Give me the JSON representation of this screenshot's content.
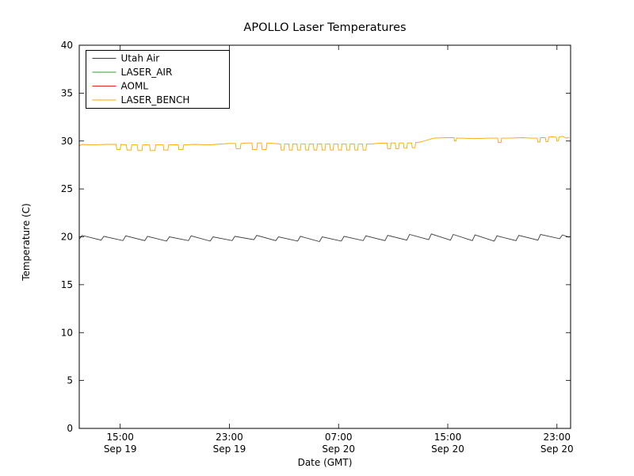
{
  "chart_data": {
    "type": "line",
    "title": "APOLLO Laser Temperatures",
    "xlabel": "Date (GMT)",
    "ylabel": "Temperature (C)",
    "ylim": [
      0,
      40
    ],
    "yticks": [
      0,
      5,
      10,
      15,
      20,
      25,
      30,
      35,
      40
    ],
    "x_axis_unit": "hours since Sep 19 12:00 GMT",
    "xlim_hours": [
      0,
      36
    ],
    "xticks": [
      {
        "hours": 3,
        "time": "15:00",
        "date": "Sep 19"
      },
      {
        "hours": 11,
        "time": "23:00",
        "date": "Sep 19"
      },
      {
        "hours": 19,
        "time": "07:00",
        "date": "Sep 20"
      },
      {
        "hours": 27,
        "time": "15:00",
        "date": "Sep 20"
      },
      {
        "hours": 35,
        "time": "23:00",
        "date": "Sep 20"
      }
    ],
    "grid": false,
    "legend_position": "upper left",
    "legend": [
      "Utah Air",
      "LASER_AIR",
      "AOML",
      "LASER_BENCH"
    ],
    "series": [
      {
        "name": "Utah Air",
        "color": "#3b3b3b",
        "points": [
          [
            0,
            19.75
          ],
          [
            0.2,
            20.15
          ],
          [
            1.6,
            19.65
          ],
          [
            1.8,
            20.05
          ],
          [
            3.2,
            19.6
          ],
          [
            3.4,
            20.1
          ],
          [
            4.8,
            19.6
          ],
          [
            5.0,
            20.05
          ],
          [
            6.4,
            19.55
          ],
          [
            6.6,
            20.0
          ],
          [
            8.0,
            19.6
          ],
          [
            8.2,
            20.1
          ],
          [
            9.6,
            19.55
          ],
          [
            9.8,
            20.0
          ],
          [
            11.2,
            19.6
          ],
          [
            11.4,
            20.05
          ],
          [
            12.8,
            19.7
          ],
          [
            13.0,
            20.15
          ],
          [
            14.4,
            19.6
          ],
          [
            14.6,
            20.0
          ],
          [
            16.0,
            19.55
          ],
          [
            16.2,
            20.05
          ],
          [
            17.6,
            19.5
          ],
          [
            17.8,
            20.0
          ],
          [
            19.2,
            19.55
          ],
          [
            19.4,
            20.05
          ],
          [
            20.8,
            19.6
          ],
          [
            21.0,
            20.1
          ],
          [
            22.4,
            19.6
          ],
          [
            22.6,
            20.15
          ],
          [
            24.0,
            19.65
          ],
          [
            24.2,
            20.25
          ],
          [
            25.6,
            19.7
          ],
          [
            25.8,
            20.3
          ],
          [
            27.2,
            19.65
          ],
          [
            27.4,
            20.25
          ],
          [
            28.8,
            19.6
          ],
          [
            29.0,
            20.2
          ],
          [
            30.4,
            19.55
          ],
          [
            30.6,
            20.1
          ],
          [
            32.0,
            19.6
          ],
          [
            32.2,
            20.15
          ],
          [
            33.6,
            19.65
          ],
          [
            33.8,
            20.25
          ],
          [
            35.2,
            19.8
          ],
          [
            35.4,
            20.2
          ],
          [
            35.9,
            19.95
          ]
        ]
      },
      {
        "name": "LASER_AIR",
        "color": "#2ca02c",
        "points": []
      },
      {
        "name": "AOML",
        "color": "#e32222",
        "points": []
      },
      {
        "name": "LASER_BENCH",
        "color": "#ffa500",
        "points": [
          [
            0,
            29.5
          ],
          [
            0.2,
            29.65
          ],
          [
            1.0,
            29.6
          ],
          [
            2.0,
            29.65
          ],
          [
            2.7,
            29.65
          ],
          [
            2.75,
            29.1
          ],
          [
            3.0,
            29.1
          ],
          [
            3.05,
            29.65
          ],
          [
            3.45,
            29.6
          ],
          [
            3.5,
            29.05
          ],
          [
            3.8,
            29.05
          ],
          [
            3.85,
            29.6
          ],
          [
            4.25,
            29.6
          ],
          [
            4.3,
            29.0
          ],
          [
            4.6,
            29.0
          ],
          [
            4.65,
            29.6
          ],
          [
            5.15,
            29.6
          ],
          [
            5.2,
            29.0
          ],
          [
            5.55,
            29.0
          ],
          [
            5.6,
            29.6
          ],
          [
            6.15,
            29.6
          ],
          [
            6.2,
            29.05
          ],
          [
            6.5,
            29.05
          ],
          [
            6.55,
            29.6
          ],
          [
            7.25,
            29.6
          ],
          [
            7.3,
            29.1
          ],
          [
            7.6,
            29.1
          ],
          [
            7.65,
            29.6
          ],
          [
            8.5,
            29.65
          ],
          [
            9.5,
            29.6
          ],
          [
            10.0,
            29.65
          ],
          [
            11.0,
            29.75
          ],
          [
            11.45,
            29.75
          ],
          [
            11.5,
            29.2
          ],
          [
            11.8,
            29.2
          ],
          [
            11.85,
            29.75
          ],
          [
            12.3,
            29.8
          ],
          [
            12.65,
            29.8
          ],
          [
            12.7,
            29.1
          ],
          [
            13.0,
            29.1
          ],
          [
            13.05,
            29.8
          ],
          [
            13.35,
            29.8
          ],
          [
            13.4,
            29.1
          ],
          [
            13.7,
            29.1
          ],
          [
            13.75,
            29.8
          ],
          [
            14.2,
            29.75
          ],
          [
            14.75,
            29.7
          ],
          [
            14.8,
            29.05
          ],
          [
            15.0,
            29.05
          ],
          [
            15.05,
            29.7
          ],
          [
            15.35,
            29.7
          ],
          [
            15.4,
            29.05
          ],
          [
            15.6,
            29.05
          ],
          [
            15.65,
            29.7
          ],
          [
            15.95,
            29.7
          ],
          [
            16.0,
            29.05
          ],
          [
            16.2,
            29.05
          ],
          [
            16.25,
            29.7
          ],
          [
            16.55,
            29.7
          ],
          [
            16.6,
            29.05
          ],
          [
            16.8,
            29.05
          ],
          [
            16.85,
            29.7
          ],
          [
            17.15,
            29.7
          ],
          [
            17.2,
            29.05
          ],
          [
            17.4,
            29.05
          ],
          [
            17.45,
            29.7
          ],
          [
            17.75,
            29.7
          ],
          [
            17.8,
            29.05
          ],
          [
            18.0,
            29.05
          ],
          [
            18.05,
            29.7
          ],
          [
            18.35,
            29.7
          ],
          [
            18.4,
            29.05
          ],
          [
            18.6,
            29.05
          ],
          [
            18.65,
            29.7
          ],
          [
            18.95,
            29.7
          ],
          [
            19.0,
            29.05
          ],
          [
            19.2,
            29.05
          ],
          [
            19.25,
            29.7
          ],
          [
            19.55,
            29.7
          ],
          [
            19.6,
            29.05
          ],
          [
            19.8,
            29.05
          ],
          [
            19.85,
            29.7
          ],
          [
            20.15,
            29.7
          ],
          [
            20.2,
            29.05
          ],
          [
            20.4,
            29.05
          ],
          [
            20.45,
            29.7
          ],
          [
            20.75,
            29.7
          ],
          [
            20.8,
            29.05
          ],
          [
            21.0,
            29.05
          ],
          [
            21.05,
            29.7
          ],
          [
            21.4,
            29.7
          ],
          [
            21.8,
            29.75
          ],
          [
            22.55,
            29.8
          ],
          [
            22.6,
            29.2
          ],
          [
            22.8,
            29.2
          ],
          [
            22.85,
            29.8
          ],
          [
            23.15,
            29.8
          ],
          [
            23.2,
            29.2
          ],
          [
            23.4,
            29.2
          ],
          [
            23.45,
            29.8
          ],
          [
            23.75,
            29.8
          ],
          [
            23.8,
            29.25
          ],
          [
            24.0,
            29.25
          ],
          [
            24.05,
            29.8
          ],
          [
            24.35,
            29.8
          ],
          [
            24.4,
            29.3
          ],
          [
            24.6,
            29.3
          ],
          [
            24.65,
            29.85
          ],
          [
            25.0,
            29.9
          ],
          [
            25.5,
            30.1
          ],
          [
            26.0,
            30.3
          ],
          [
            27.0,
            30.35
          ],
          [
            27.45,
            30.35
          ],
          [
            27.5,
            30.0
          ],
          [
            27.6,
            30.0
          ],
          [
            27.65,
            30.3
          ],
          [
            28.0,
            30.3
          ],
          [
            29.0,
            30.25
          ],
          [
            30.0,
            30.3
          ],
          [
            30.65,
            30.3
          ],
          [
            30.7,
            29.85
          ],
          [
            30.9,
            29.85
          ],
          [
            30.95,
            30.3
          ],
          [
            31.5,
            30.3
          ],
          [
            32.5,
            30.35
          ],
          [
            33.0,
            30.3
          ],
          [
            33.55,
            30.3
          ],
          [
            33.6,
            29.9
          ],
          [
            33.75,
            29.9
          ],
          [
            33.8,
            30.35
          ],
          [
            34.15,
            30.35
          ],
          [
            34.2,
            29.95
          ],
          [
            34.35,
            29.95
          ],
          [
            34.4,
            30.4
          ],
          [
            34.6,
            30.45
          ],
          [
            34.95,
            30.4
          ],
          [
            35.0,
            30.0
          ],
          [
            35.1,
            30.0
          ],
          [
            35.15,
            30.4
          ],
          [
            35.4,
            30.5
          ],
          [
            35.7,
            30.3
          ],
          [
            35.9,
            30.4
          ]
        ]
      }
    ]
  }
}
